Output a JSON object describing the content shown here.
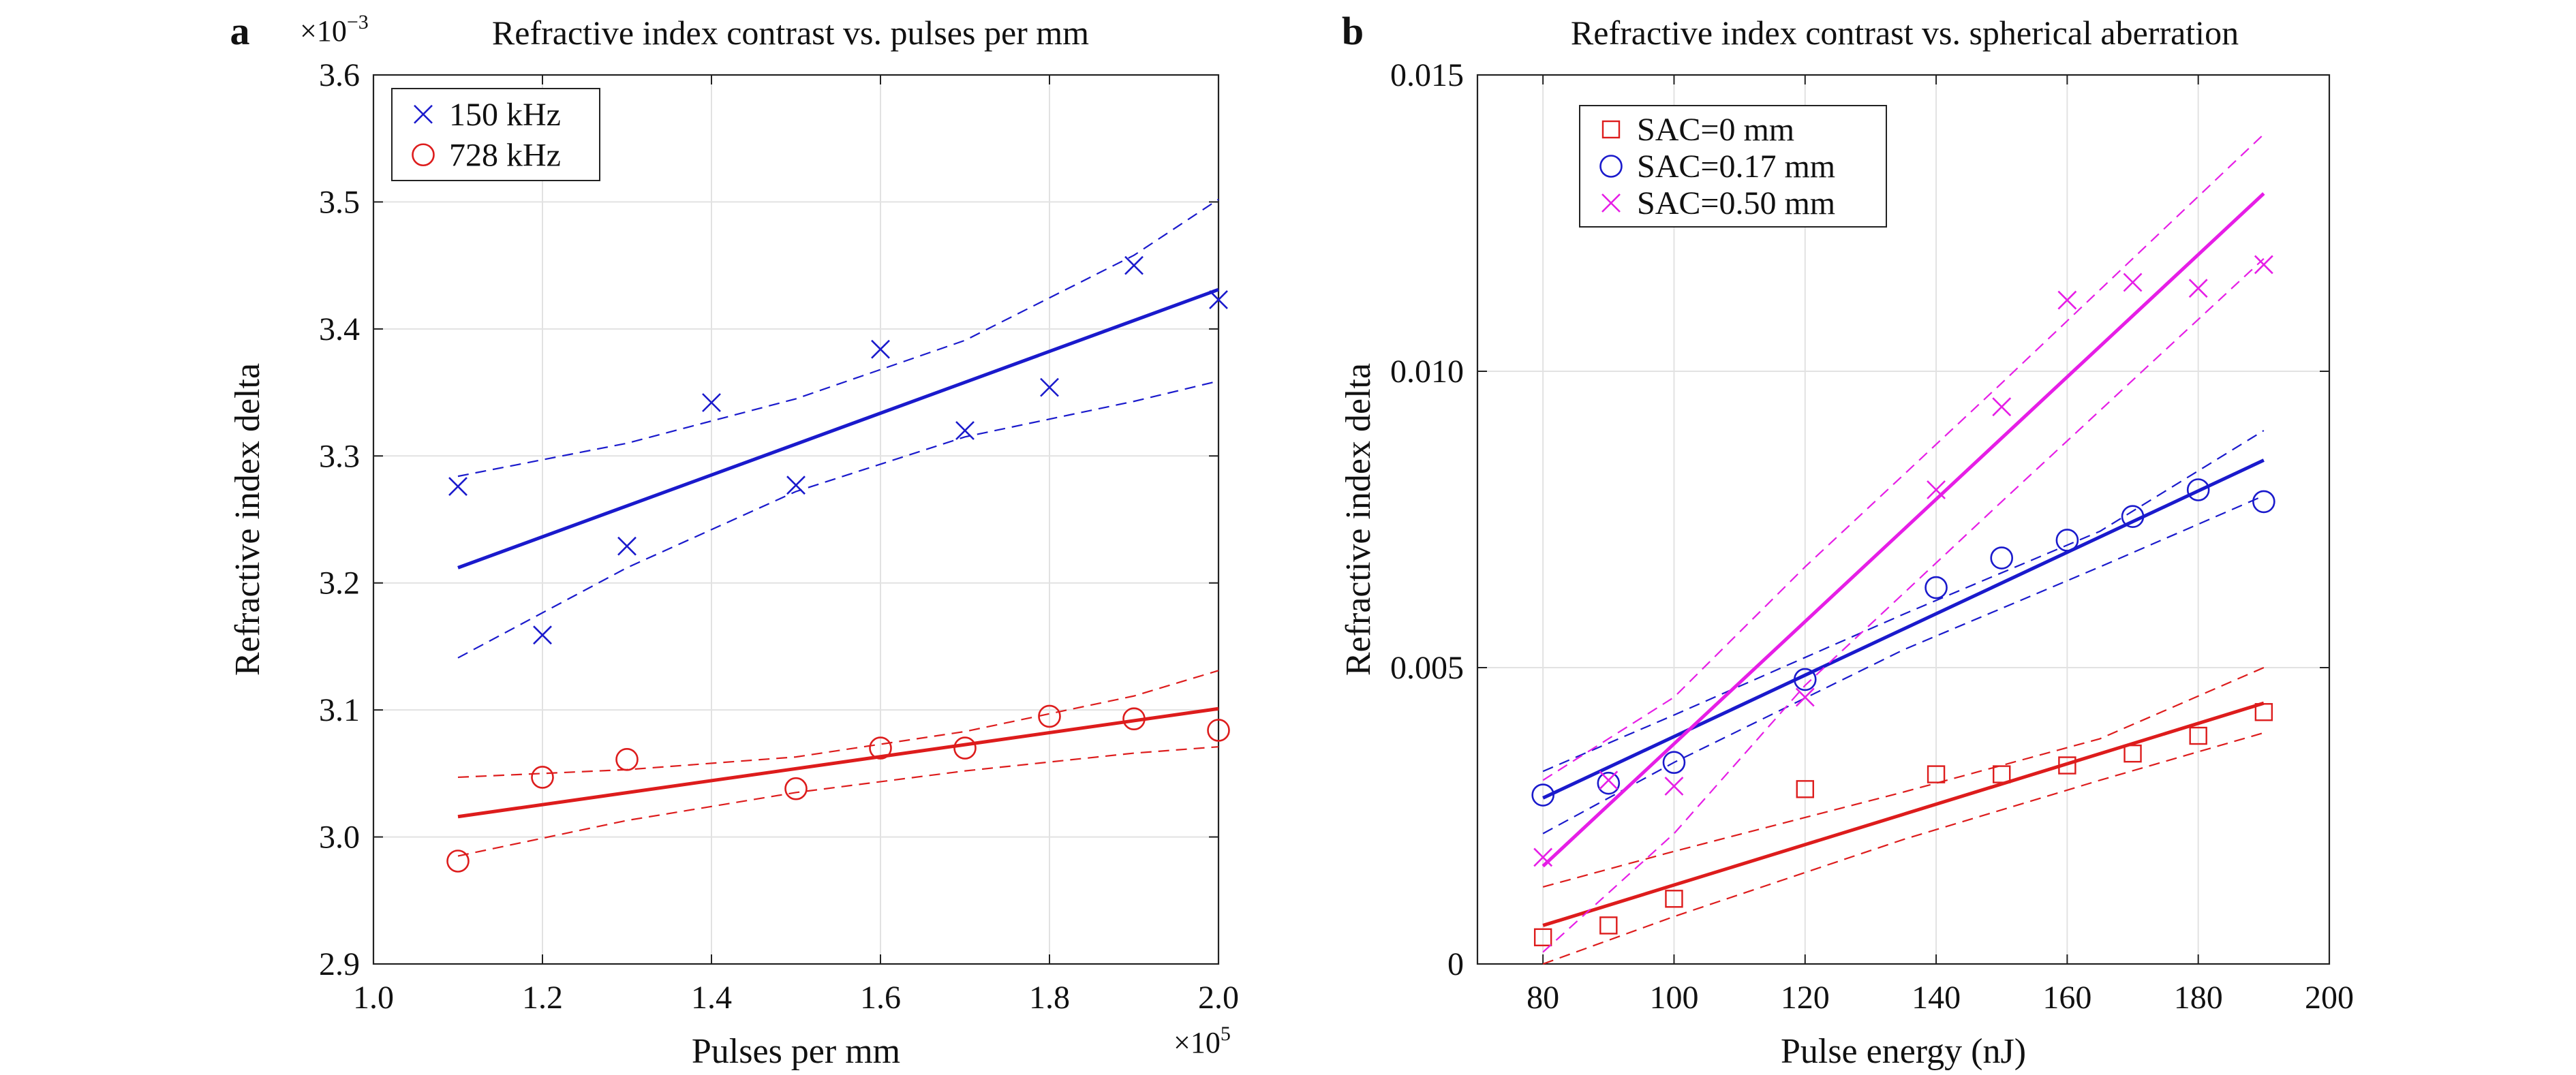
{
  "chart_data": [
    {
      "type": "scatter",
      "panel_label": "a",
      "title": "Refractive index contrast vs. pulses per mm",
      "xlabel": "Pulses per mm",
      "ylabel": "Refractive index delta",
      "x_multiplier": {
        "base": "×10",
        "exp": "5"
      },
      "y_multiplier": {
        "base": "×10",
        "exp": "−3"
      },
      "xlim": [
        1.0,
        2.0
      ],
      "ylim": [
        2.9,
        3.6
      ],
      "x_ticks": [
        1.0,
        1.2,
        1.4,
        1.6,
        1.8,
        2.0
      ],
      "x_tick_labels": [
        "1.0",
        "1.2",
        "1.4",
        "1.6",
        "1.8",
        "2.0"
      ],
      "y_ticks": [
        2.9,
        3.0,
        3.1,
        3.2,
        3.3,
        3.4,
        3.5,
        3.6
      ],
      "y_tick_labels": [
        "2.9",
        "3.0",
        "3.1",
        "3.2",
        "3.3",
        "3.4",
        "3.5",
        "3.6"
      ],
      "grid": true,
      "legend_position": "top-left",
      "series": [
        {
          "name": "150 kHz",
          "marker": "x",
          "color": "#1a1acc",
          "x": [
            1.1,
            1.2,
            1.3,
            1.4,
            1.5,
            1.6,
            1.7,
            1.8,
            1.9,
            2.0
          ],
          "y": [
            3.276,
            3.159,
            3.229,
            3.342,
            3.277,
            3.384,
            3.32,
            3.354,
            3.45,
            3.423
          ],
          "fit": {
            "x": [
              1.1,
              2.0
            ],
            "y": [
              3.212,
              3.431
            ]
          },
          "band_upper": {
            "x": [
              1.1,
              1.3,
              1.5,
              1.7,
              1.9,
              2.0
            ],
            "y": [
              3.284,
              3.31,
              3.345,
              3.391,
              3.458,
              3.502
            ]
          },
          "band_lower": {
            "x": [
              1.1,
              1.3,
              1.5,
              1.7,
              1.9,
              2.0
            ],
            "y": [
              3.141,
              3.212,
              3.272,
              3.315,
              3.343,
              3.359
            ]
          }
        },
        {
          "name": "728 kHz",
          "marker": "o",
          "color": "#dd1c1c",
          "x": [
            1.1,
            1.2,
            1.3,
            1.5,
            1.6,
            1.7,
            1.8,
            1.9,
            2.0
          ],
          "y": [
            2.981,
            3.047,
            3.061,
            3.038,
            3.07,
            3.07,
            3.095,
            3.093,
            3.084
          ],
          "fit": {
            "x": [
              1.1,
              2.0
            ],
            "y": [
              3.016,
              3.101
            ]
          },
          "band_upper": {
            "x": [
              1.1,
              1.3,
              1.5,
              1.7,
              1.9,
              2.0
            ],
            "y": [
              3.047,
              3.053,
              3.063,
              3.083,
              3.111,
              3.131
            ]
          },
          "band_lower": {
            "x": [
              1.1,
              1.3,
              1.5,
              1.7,
              1.9,
              2.0
            ],
            "y": [
              2.985,
              3.013,
              3.035,
              3.052,
              3.066,
              3.071
            ]
          }
        }
      ]
    },
    {
      "type": "scatter",
      "panel_label": "b",
      "title": "Refractive index contrast vs. spherical aberration",
      "xlabel": "Pulse energy (nJ)",
      "ylabel": "Refractive index delta",
      "xlim": [
        70,
        200
      ],
      "ylim": [
        0,
        0.015
      ],
      "x_ticks": [
        80,
        100,
        120,
        140,
        160,
        180,
        200
      ],
      "x_tick_labels": [
        "80",
        "100",
        "120",
        "140",
        "160",
        "180",
        "200"
      ],
      "y_ticks": [
        0,
        0.005,
        0.01,
        0.015
      ],
      "y_tick_labels": [
        "0",
        "0.005",
        "0.010",
        "0.015"
      ],
      "grid": true,
      "legend_position": "top-left",
      "series": [
        {
          "name": "SAC=0 mm",
          "marker": "square",
          "color": "#dd1c1c",
          "x": [
            80,
            90,
            100,
            120,
            140,
            150,
            160,
            170,
            180,
            190
          ],
          "y": [
            0.00045,
            0.00065,
            0.0011,
            0.00295,
            0.0032,
            0.0032,
            0.00335,
            0.00355,
            0.00385,
            0.00425
          ],
          "fit": {
            "x": [
              80,
              190
            ],
            "y": [
              0.00065,
              0.0044
            ]
          },
          "band_upper": {
            "x": [
              80,
              100,
              135,
              165,
              190
            ],
            "y": [
              0.0013,
              0.0019,
              0.0029,
              0.0038,
              0.005
            ]
          },
          "band_lower": {
            "x": [
              80,
              100,
              135,
              165,
              190
            ],
            "y": [
              0.0,
              0.0008,
              0.0021,
              0.0031,
              0.0039
            ]
          }
        },
        {
          "name": "SAC=0.17 mm",
          "marker": "o",
          "color": "#1a1acc",
          "x": [
            80,
            90,
            100,
            120,
            140,
            150,
            160,
            170,
            180,
            190
          ],
          "y": [
            0.00285,
            0.00305,
            0.0034,
            0.0048,
            0.00635,
            0.00685,
            0.00715,
            0.00755,
            0.008,
            0.0078
          ],
          "fit": {
            "x": [
              80,
              190
            ],
            "y": [
              0.0028,
              0.0085
            ]
          },
          "band_upper": {
            "x": [
              80,
              100,
              135,
              165,
              190
            ],
            "y": [
              0.00325,
              0.0042,
              0.0059,
              0.0073,
              0.009
            ]
          },
          "band_lower": {
            "x": [
              80,
              100,
              135,
              165,
              190
            ],
            "y": [
              0.0022,
              0.0034,
              0.0053,
              0.0067,
              0.0079
            ]
          }
        },
        {
          "name": "SAC=0.50 mm",
          "marker": "x",
          "color": "#e61ee6",
          "x": [
            80,
            90,
            100,
            120,
            140,
            150,
            160,
            170,
            180,
            190
          ],
          "y": [
            0.0018,
            0.0031,
            0.003,
            0.0045,
            0.008,
            0.0094,
            0.0112,
            0.0115,
            0.0114,
            0.0118
          ],
          "fit": {
            "x": [
              80,
              190
            ],
            "y": [
              0.00165,
              0.013
            ]
          },
          "band_upper": {
            "x": [
              80,
              100,
              120,
              150,
              190
            ],
            "y": [
              0.0031,
              0.0045,
              0.0067,
              0.0098,
              0.014
            ]
          },
          "band_lower": {
            "x": [
              80,
              100,
              120,
              150,
              190
            ],
            "y": [
              0.0002,
              0.0022,
              0.0047,
              0.0078,
              0.0119
            ]
          }
        }
      ]
    }
  ]
}
